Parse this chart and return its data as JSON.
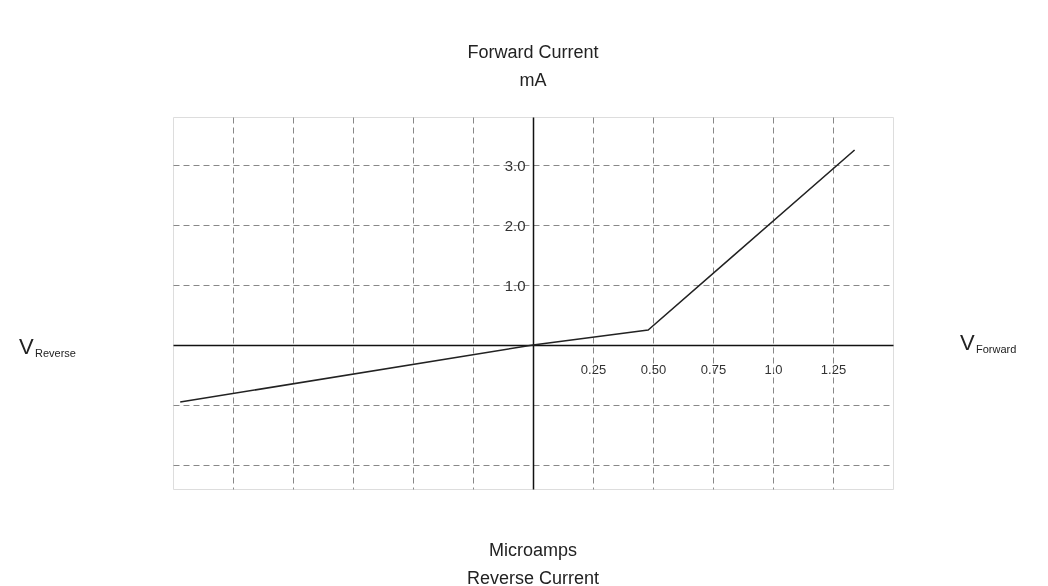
{
  "chart_data": {
    "type": "line",
    "ylabel": "Forward Current\nmA",
    "xlabel": "V$_{Forward}$",
    "annotations": [
      "V$_{Reverse}$",
      "Microamps\nReverse Current"
    ],
    "series": [
      {
        "color": "#222222",
        "x": [
          -1.47,
          0,
          0.48,
          1.34
        ],
        "values": [
          -0.95,
          0,
          0.25,
          3.25
        ]
      }
    ],
    "xlim": [
      -1.5,
      1.5
    ],
    "ylim": [
      -2.4,
      3.8
    ],
    "xticks": [
      {
        "value": -1.25,
        "label": null
      },
      {
        "value": -1.0,
        "label": null
      },
      {
        "value": -0.75,
        "label": null
      },
      {
        "value": -0.5,
        "label": null
      },
      {
        "value": -0.25,
        "label": null
      },
      0.25,
      {
        "value": 0.5,
        "label": "0.50"
      },
      0.75,
      {
        "value": 1,
        "label": "1.0"
      },
      1.25
    ],
    "yticks": [
      {
        "value": -2,
        "label": null
      },
      {
        "value": -1,
        "label": null
      },
      {
        "value": 1,
        "label": "1.0"
      },
      {
        "value": 2,
        "label": "2.0"
      },
      {
        "value": 3,
        "label": "3.0"
      }
    ],
    "grid": true,
    "marker": "none",
    "line_style": "solid"
  }
}
